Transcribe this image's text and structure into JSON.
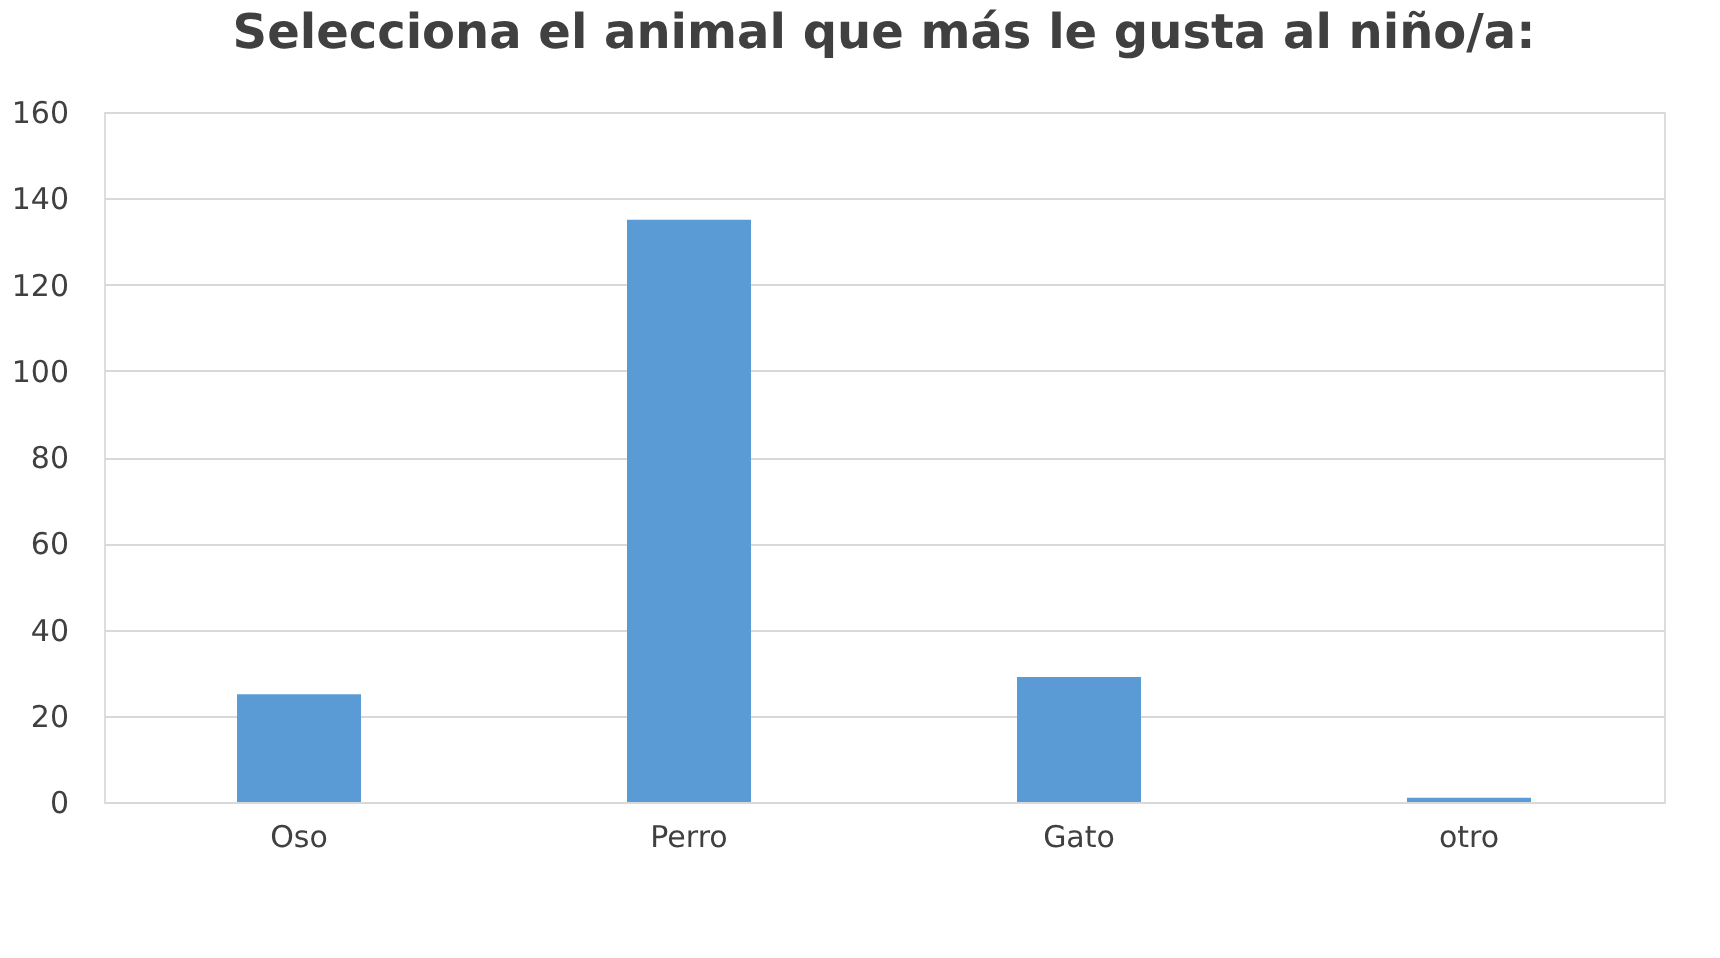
{
  "chart_data": {
    "type": "bar",
    "title": "Selecciona el animal que más le gusta al niño/a:",
    "categories": [
      "Oso",
      "Perro",
      "Gato",
      "otro"
    ],
    "values": [
      25,
      135,
      29,
      1
    ],
    "color": "#5b9bd5",
    "ylim": [
      0,
      160
    ],
    "yticks": [
      0,
      20,
      40,
      60,
      80,
      100,
      120,
      140,
      160
    ],
    "grid": "y"
  }
}
